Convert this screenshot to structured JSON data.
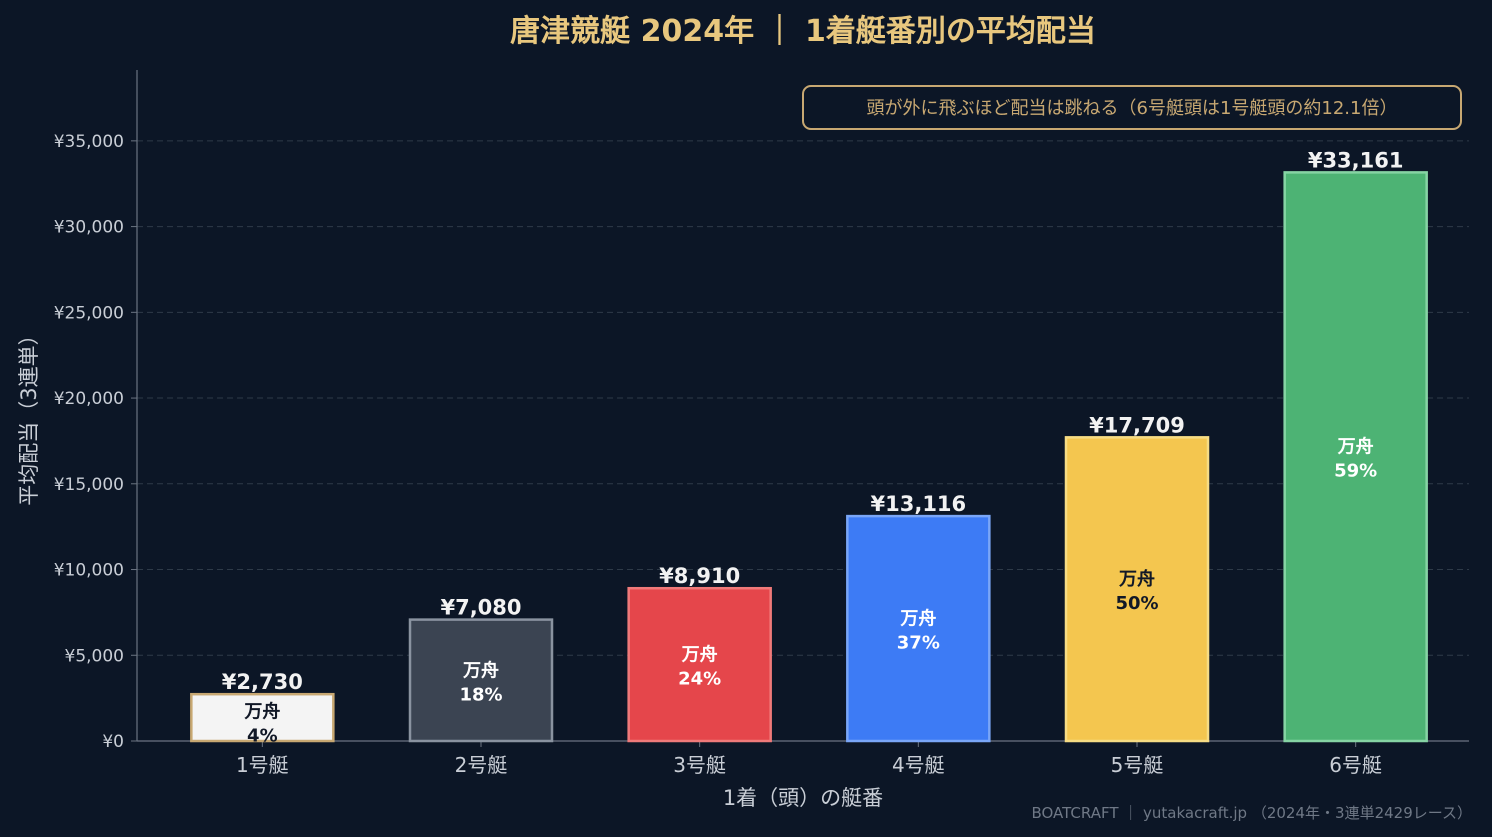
{
  "chart_data": {
    "type": "bar",
    "title": "唐津競艇 2024年 ｜ 1着艇番別の平均配当",
    "annotation": "頭が外に飛ぶほど配当は跳ねる（6号艇頭は1号艇頭の約12.1倍）",
    "xlabel": "1着（頭）の艇番",
    "ylabel": "平均配当（3連単）",
    "categories": [
      "1号艇",
      "2号艇",
      "3号艇",
      "4号艇",
      "5号艇",
      "6号艇"
    ],
    "values": [
      2730,
      7080,
      8910,
      13116,
      17709,
      33161
    ],
    "value_labels": [
      "¥2,730",
      "¥7,080",
      "¥8,910",
      "¥13,116",
      "¥17,709",
      "¥33,161"
    ],
    "inner_label": "万舟",
    "inner_percents": [
      "4%",
      "18%",
      "24%",
      "37%",
      "50%",
      "59%"
    ],
    "bar_colors": [
      "#f4f4f4",
      "#3b4452",
      "#e5464b",
      "#3d7bf5",
      "#f4c64f",
      "#4db374"
    ],
    "bar_edge_colors": [
      "#c8a872",
      "#8a93a0",
      "#f07a7a",
      "#7aa6f7",
      "#f7dc84",
      "#86d4a4"
    ],
    "inner_text_colors": [
      "#111827",
      "#ffffff",
      "#ffffff",
      "#ffffff",
      "#111827",
      "#ffffff"
    ],
    "yticks": [
      0,
      5000,
      10000,
      15000,
      20000,
      25000,
      30000,
      35000
    ],
    "ytick_labels": [
      "¥0",
      "¥5,000",
      "¥10,000",
      "¥15,000",
      "¥20,000",
      "¥25,000",
      "¥30,000",
      "¥35,000"
    ],
    "ylim": [
      0,
      39500
    ],
    "grid": true,
    "annotation_position": "top-right"
  },
  "colors": {
    "background": "#0c1626",
    "title": "#e8c77e",
    "axis_text": "#c9ced6",
    "grid": "#2e3a48",
    "annotation_border": "#c8a872",
    "annotation_text": "#c8a872"
  },
  "footer": "BOATCRAFT ｜ yutakacraft.jp （2024年・3連単2429レース）"
}
